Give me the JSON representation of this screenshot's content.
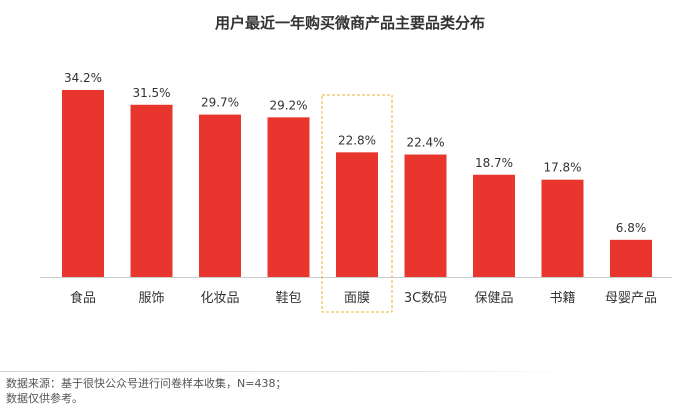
{
  "chart_data": {
    "type": "bar",
    "title": "用户最近一年购买微商产品主要品类分布",
    "categories": [
      "食品",
      "服饰",
      "化妆品",
      "鞋包",
      "面膜",
      "3C数码",
      "保健品",
      "书籍",
      "母婴产品"
    ],
    "values": [
      34.2,
      31.5,
      29.7,
      29.2,
      22.8,
      22.4,
      18.7,
      17.8,
      6.8
    ],
    "value_labels": [
      "34.2%",
      "31.5%",
      "29.7%",
      "29.2%",
      "22.8%",
      "22.4%",
      "18.7%",
      "17.8%",
      "6.8%"
    ],
    "unit": "%",
    "highlighted_category": "面膜",
    "xlabel": "",
    "ylabel": "",
    "ylim": [
      0,
      34.2
    ],
    "grid": false,
    "legend": "none",
    "colors": {
      "bar": "#e8352e",
      "highlight_border": "#f2b230",
      "baseline": "#cccccc",
      "text": "#333333"
    }
  },
  "footer": {
    "source_line": "数据来源：基于很快公众号进行问卷样本收集，N=438；",
    "disclaimer_line": "数据仅供参考。"
  }
}
